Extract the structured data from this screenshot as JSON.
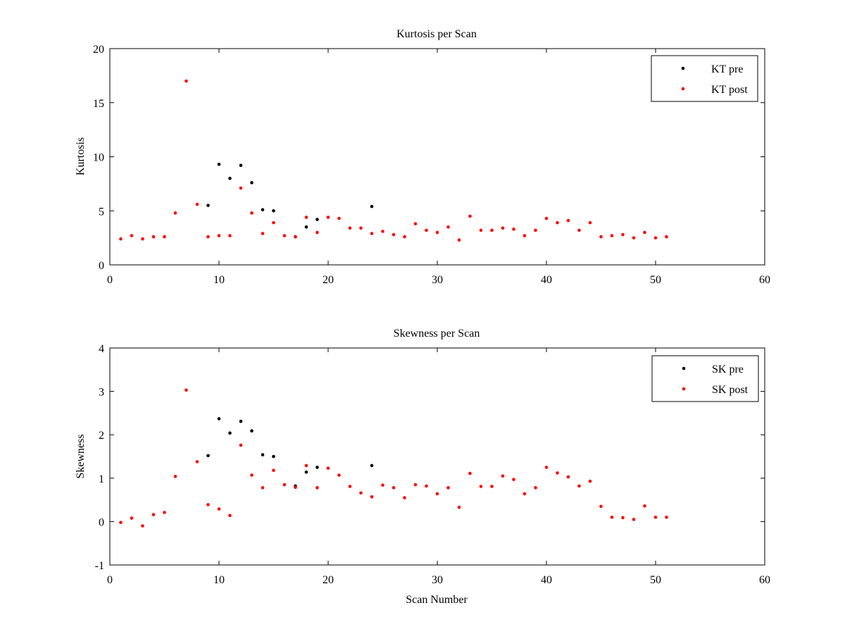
{
  "chart_data": [
    {
      "type": "scatter",
      "title": "Kurtosis per Scan",
      "xlabel": "",
      "ylabel": "Kurtosis",
      "xlim": [
        0,
        60
      ],
      "ylim": [
        0,
        20
      ],
      "xticks": [
        0,
        10,
        20,
        30,
        40,
        50,
        60
      ],
      "yticks": [
        0,
        5,
        10,
        15,
        20
      ],
      "legend_position": "top-right",
      "series": [
        {
          "name": "KT pre",
          "color": "#000000",
          "points": [
            [
              9,
              5.5
            ],
            [
              10,
              9.3
            ],
            [
              11,
              8.0
            ],
            [
              12,
              9.2
            ],
            [
              13,
              7.6
            ],
            [
              14,
              5.1
            ],
            [
              15,
              5.0
            ],
            [
              17,
              2.6
            ],
            [
              18,
              3.5
            ],
            [
              19,
              4.2
            ],
            [
              24,
              5.4
            ]
          ]
        },
        {
          "name": "KT post",
          "color": "#ff0000",
          "points": [
            [
              1,
              2.4
            ],
            [
              2,
              2.7
            ],
            [
              3,
              2.4
            ],
            [
              4,
              2.6
            ],
            [
              5,
              2.6
            ],
            [
              6,
              4.8
            ],
            [
              7,
              17.0
            ],
            [
              8,
              5.6
            ],
            [
              9,
              2.6
            ],
            [
              10,
              2.7
            ],
            [
              11,
              2.7
            ],
            [
              12,
              7.1
            ],
            [
              13,
              4.8
            ],
            [
              14,
              2.9
            ],
            [
              15,
              3.9
            ],
            [
              16,
              2.7
            ],
            [
              17,
              2.6
            ],
            [
              18,
              4.4
            ],
            [
              19,
              3.0
            ],
            [
              20,
              4.4
            ],
            [
              21,
              4.3
            ],
            [
              22,
              3.4
            ],
            [
              23,
              3.4
            ],
            [
              24,
              2.9
            ],
            [
              25,
              3.1
            ],
            [
              26,
              2.8
            ],
            [
              27,
              2.6
            ],
            [
              28,
              3.8
            ],
            [
              29,
              3.2
            ],
            [
              30,
              3.0
            ],
            [
              31,
              3.5
            ],
            [
              32,
              2.3
            ],
            [
              33,
              4.5
            ],
            [
              34,
              3.2
            ],
            [
              35,
              3.2
            ],
            [
              36,
              3.4
            ],
            [
              37,
              3.3
            ],
            [
              38,
              2.7
            ],
            [
              39,
              3.2
            ],
            [
              40,
              4.3
            ],
            [
              41,
              3.9
            ],
            [
              42,
              4.1
            ],
            [
              43,
              3.2
            ],
            [
              44,
              3.9
            ],
            [
              45,
              2.6
            ],
            [
              46,
              2.7
            ],
            [
              47,
              2.8
            ],
            [
              48,
              2.5
            ],
            [
              49,
              3.0
            ],
            [
              50,
              2.5
            ],
            [
              51,
              2.6
            ]
          ]
        }
      ]
    },
    {
      "type": "scatter",
      "title": "Skewness per Scan",
      "xlabel": "Scan Number",
      "ylabel": "Skewness",
      "xlim": [
        0,
        60
      ],
      "ylim": [
        -1,
        4
      ],
      "xticks": [
        0,
        10,
        20,
        30,
        40,
        50,
        60
      ],
      "yticks": [
        -1,
        0,
        1,
        2,
        3,
        4
      ],
      "legend_position": "top-right",
      "series": [
        {
          "name": "SK pre",
          "color": "#000000",
          "points": [
            [
              9,
              1.52
            ],
            [
              10,
              2.37
            ],
            [
              11,
              2.04
            ],
            [
              12,
              2.31
            ],
            [
              13,
              2.09
            ],
            [
              14,
              1.54
            ],
            [
              15,
              1.5
            ],
            [
              17,
              0.82
            ],
            [
              18,
              1.14
            ],
            [
              19,
              1.25
            ],
            [
              24,
              1.29
            ]
          ]
        },
        {
          "name": "SK post",
          "color": "#ff0000",
          "points": [
            [
              1,
              -0.02
            ],
            [
              2,
              0.08
            ],
            [
              3,
              -0.1
            ],
            [
              4,
              0.16
            ],
            [
              5,
              0.21
            ],
            [
              6,
              1.04
            ],
            [
              7,
              3.03
            ],
            [
              8,
              1.38
            ],
            [
              9,
              0.39
            ],
            [
              10,
              0.29
            ],
            [
              11,
              0.14
            ],
            [
              12,
              1.76
            ],
            [
              13,
              1.07
            ],
            [
              14,
              0.78
            ],
            [
              15,
              1.18
            ],
            [
              16,
              0.85
            ],
            [
              17,
              0.79
            ],
            [
              18,
              1.29
            ],
            [
              19,
              0.78
            ],
            [
              20,
              1.23
            ],
            [
              21,
              1.07
            ],
            [
              22,
              0.81
            ],
            [
              23,
              0.66
            ],
            [
              24,
              0.57
            ],
            [
              25,
              0.84
            ],
            [
              26,
              0.78
            ],
            [
              27,
              0.55
            ],
            [
              28,
              0.85
            ],
            [
              29,
              0.82
            ],
            [
              30,
              0.64
            ],
            [
              31,
              0.78
            ],
            [
              32,
              0.33
            ],
            [
              33,
              1.11
            ],
            [
              34,
              0.81
            ],
            [
              35,
              0.81
            ],
            [
              36,
              1.05
            ],
            [
              37,
              0.97
            ],
            [
              38,
              0.64
            ],
            [
              39,
              0.78
            ],
            [
              40,
              1.25
            ],
            [
              41,
              1.12
            ],
            [
              42,
              1.03
            ],
            [
              43,
              0.82
            ],
            [
              44,
              0.93
            ],
            [
              45,
              0.35
            ],
            [
              46,
              0.1
            ],
            [
              47,
              0.09
            ],
            [
              48,
              0.05
            ],
            [
              49,
              0.36
            ],
            [
              50,
              0.1
            ],
            [
              51,
              0.1
            ]
          ]
        }
      ]
    }
  ]
}
